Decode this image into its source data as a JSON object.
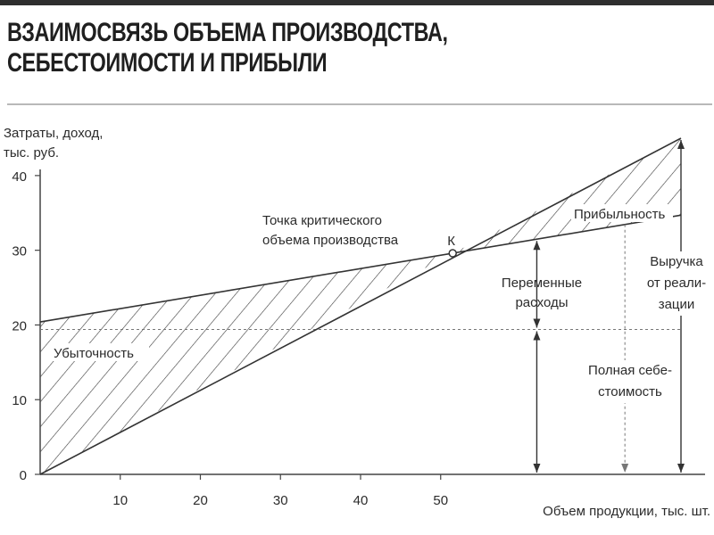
{
  "title_lines": [
    "ВЗАИМОСВЯЗЬ ОБЪЕМА ПРОИЗВОДСТВА,",
    "СЕБЕСТОИМОСТИ И ПРИБЫЛИ"
  ],
  "chart_data": {
    "type": "line",
    "ylabel_lines": [
      "Затраты, доход,",
      "тыс. руб."
    ],
    "xlabel": "Объем продукции, тыс. шт.",
    "xlim": [
      0,
      80
    ],
    "ylim": [
      0,
      45
    ],
    "x_ticks": [
      10,
      20,
      30,
      40,
      50
    ],
    "y_ticks": [
      0,
      10,
      20,
      30,
      40
    ],
    "series": [
      {
        "key": "revenue",
        "x": [
          0,
          80
        ],
        "y": [
          0,
          45
        ]
      },
      {
        "key": "total_cost",
        "x": [
          0,
          80
        ],
        "y": [
          20.4,
          34.7
        ]
      },
      {
        "key": "fixed_cost",
        "x": [
          0,
          80
        ],
        "y": [
          19.4,
          19.4
        ]
      }
    ],
    "break_even": {
      "label": "К",
      "x": 51.5,
      "y": 29.6
    },
    "annotations": {
      "critical_point": [
        "Точка критического",
        "объема производства"
      ],
      "loss": "Убыточность",
      "profit": "Прибыльность",
      "variable_costs": [
        "Переменные",
        "расходы"
      ],
      "revenue": [
        "Выручка",
        "от реали-",
        "зации"
      ],
      "full_cost": [
        "Полная себе-",
        "стоимость"
      ]
    },
    "grid": false
  }
}
